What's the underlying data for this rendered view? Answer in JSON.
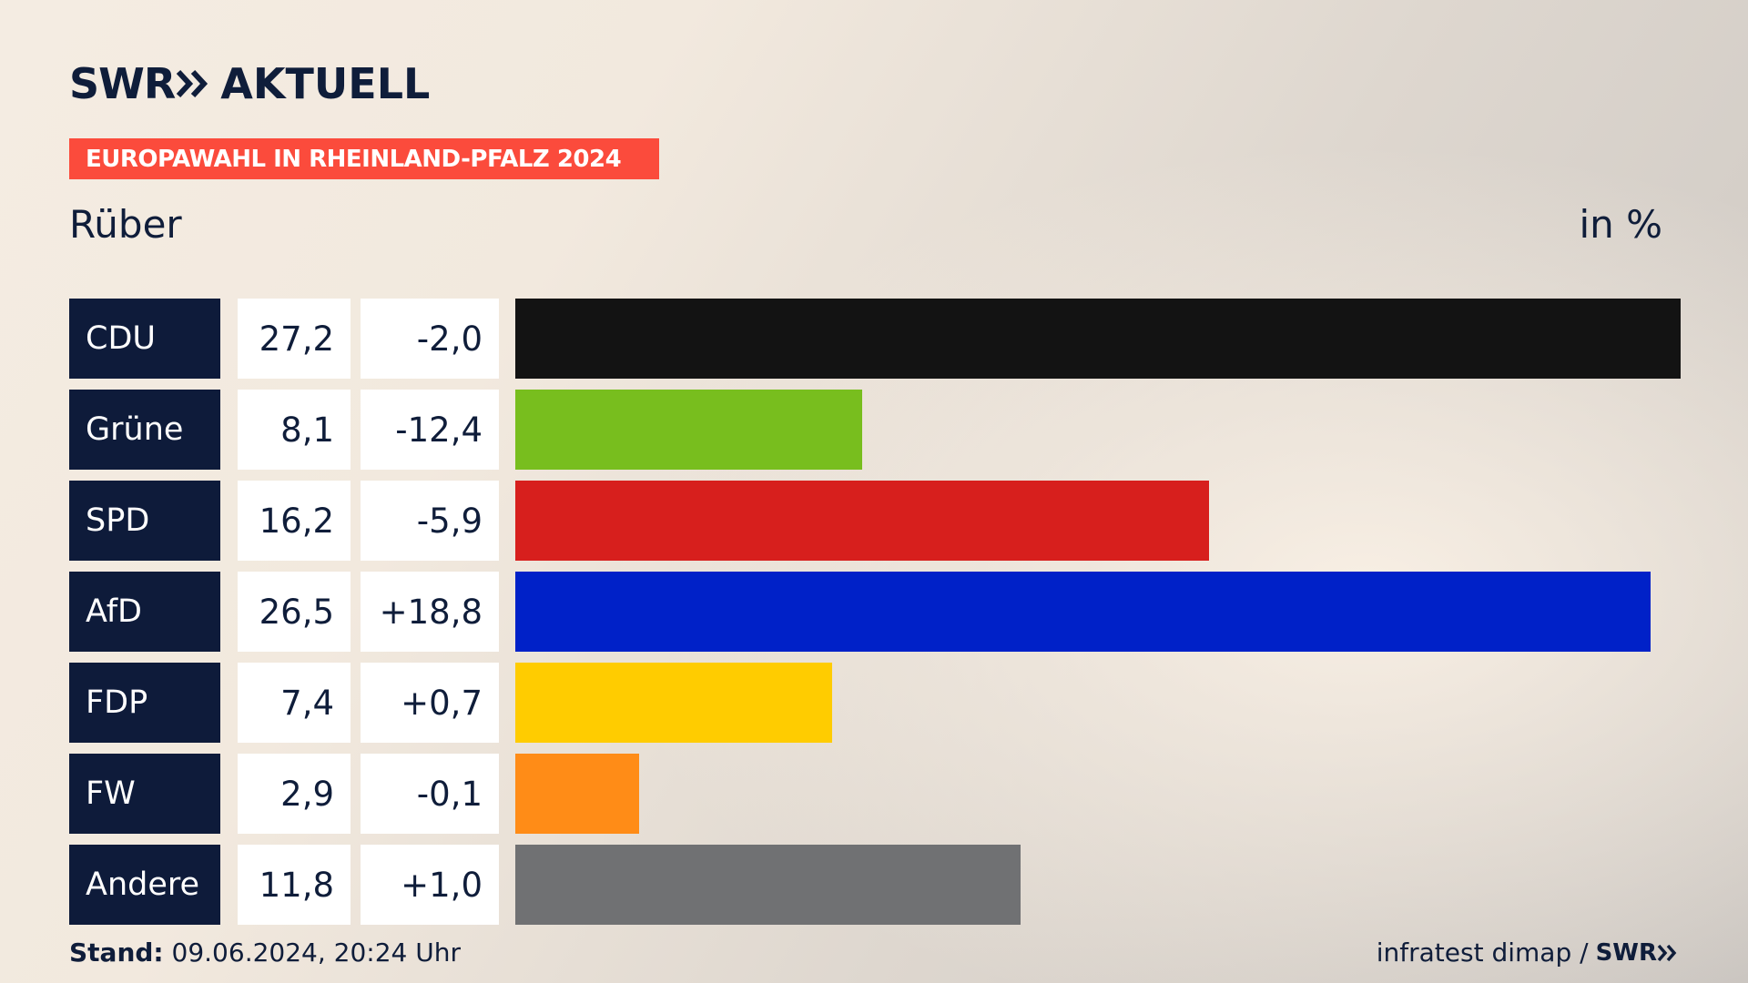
{
  "header": {
    "logo_text_left": "SWR",
    "logo_text_right": "AKTUELL",
    "banner": "EUROPAWAHL IN RHEINLAND-PFALZ 2024",
    "subtitle": "Rüber",
    "unit": "in %"
  },
  "chart_data": {
    "type": "bar",
    "orientation": "horizontal",
    "title": "EUROPAWAHL IN RHEINLAND-PFALZ 2024",
    "subtitle": "Rüber",
    "unit": "in %",
    "categories": [
      "CDU",
      "Grüne",
      "SPD",
      "AfD",
      "FDP",
      "FW",
      "Andere"
    ],
    "values": [
      27.2,
      8.1,
      16.2,
      26.5,
      7.4,
      2.9,
      11.8
    ],
    "value_labels": [
      "27,2",
      "8,1",
      "16,2",
      "26,5",
      "7,4",
      "2,9",
      "11,8"
    ],
    "change_labels": [
      "-2,0",
      "-12,4",
      "-5,9",
      "+18,8",
      "+0,7",
      "-0,1",
      "+1,0"
    ],
    "colors": [
      "#131313",
      "#78be1e",
      "#d71f1d",
      "#0021c8",
      "#ffcc00",
      "#ff8c17",
      "#707173"
    ],
    "xlim": [
      0,
      27.2
    ]
  },
  "footer": {
    "stand_label": "Stand:",
    "stand_value": "09.06.2024, 20:24 Uhr",
    "source": "infratest dimap /",
    "source_logo": "SWR"
  }
}
